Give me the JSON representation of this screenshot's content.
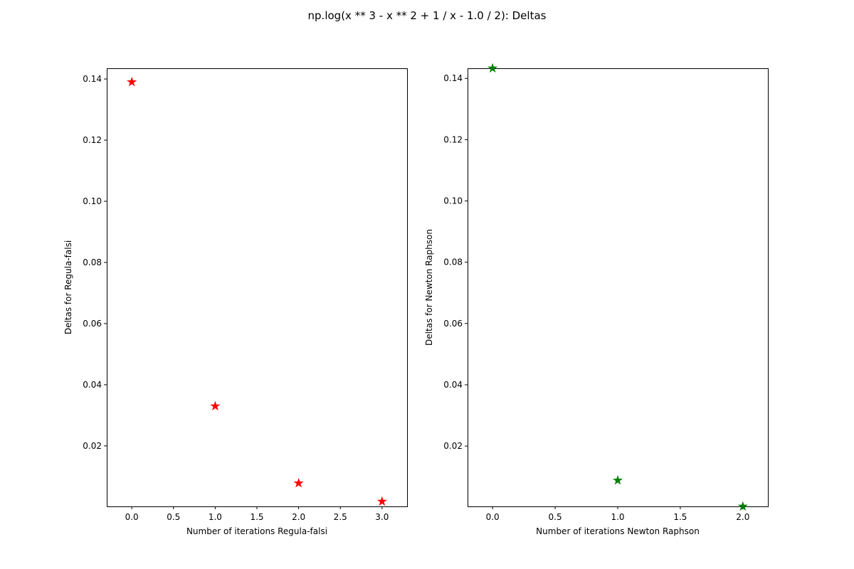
{
  "figure": {
    "suptitle": "np.log(x ** 3 - x ** 2 + 1 / x - 1.0 / 2): Deltas"
  },
  "chart_data": [
    {
      "type": "scatter",
      "marker": "star",
      "color": "#ff0000",
      "x": [
        0,
        1,
        2,
        3
      ],
      "y": [
        0.139,
        0.033,
        0.0078,
        0.0018
      ],
      "xlabel": "Number of iterations Regula-falsi",
      "ylabel": "Deltas for Regula-falsi",
      "xlim": [
        -0.3,
        3.3
      ],
      "ylim": [
        0.0002,
        0.1435
      ],
      "xticks": [
        0.0,
        0.5,
        1.0,
        1.5,
        2.0,
        2.5,
        3.0
      ],
      "xtick_labels": [
        "0.0",
        "0.5",
        "1.0",
        "1.5",
        "2.0",
        "2.5",
        "3.0"
      ],
      "yticks": [
        0.02,
        0.04,
        0.06,
        0.08,
        0.1,
        0.12,
        0.14
      ],
      "ytick_labels": [
        "0.02",
        "0.04",
        "0.06",
        "0.08",
        "0.10",
        "0.12",
        "0.14"
      ],
      "grid": false
    },
    {
      "type": "scatter",
      "marker": "star",
      "color": "#008000",
      "x": [
        0,
        1,
        2
      ],
      "y": [
        0.1433,
        0.0088,
        0.0003
      ],
      "xlabel": "Number of iterations Newton Raphson",
      "ylabel": "Deltas for Newton Raphson",
      "xlim": [
        -0.2,
        2.2
      ],
      "ylim": [
        0.0003,
        0.1433
      ],
      "xticks": [
        0.0,
        0.5,
        1.0,
        1.5,
        2.0
      ],
      "xtick_labels": [
        "0.0",
        "0.5",
        "1.0",
        "1.5",
        "2.0"
      ],
      "yticks": [
        0.02,
        0.04,
        0.06,
        0.08,
        0.1,
        0.12,
        0.14
      ],
      "ytick_labels": [
        "0.02",
        "0.04",
        "0.06",
        "0.08",
        "0.10",
        "0.12",
        "0.14"
      ],
      "grid": false
    }
  ]
}
